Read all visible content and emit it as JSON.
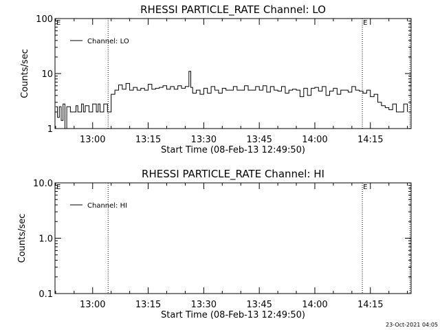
{
  "footer": {
    "timestamp": "23-Oct-2021 04:05"
  },
  "chart_data": [
    {
      "type": "line",
      "title": "RHESSI PARTICLE_RATE Channel: LO",
      "xlabel": "Start Time (08-Feb-13 12:49:50)",
      "ylabel": "Counts/sec",
      "yscale": "log",
      "ylim": [
        1,
        100
      ],
      "yticks": [
        {
          "value": 1,
          "label": "1"
        },
        {
          "value": 10,
          "label": "10"
        },
        {
          "value": 100,
          "label": "100"
        }
      ],
      "xlim": [
        "12:49:50",
        "14:26:00"
      ],
      "xticks": [
        "13:00",
        "13:15",
        "13:30",
        "13:45",
        "14:00",
        "14:15"
      ],
      "grid": false,
      "legend": {
        "position": "top-left",
        "entries": [
          "Channel: LO"
        ]
      },
      "markers": [
        {
          "time": "13:04:10",
          "label": ""
        },
        {
          "time": "14:12:50",
          "label": "E"
        },
        {
          "time": "14:25:40",
          "label": ""
        }
      ],
      "corner_label": "E",
      "series": [
        {
          "name": "Channel: LO",
          "x": [
            "12:50:00",
            "12:50:30",
            "12:51:00",
            "12:51:30",
            "12:52:00",
            "12:52:30",
            "12:53:00",
            "12:54:00",
            "12:55:00",
            "12:55:30",
            "12:56:00",
            "12:57:00",
            "12:57:30",
            "12:58:00",
            "12:59:00",
            "13:00:00",
            "13:01:00",
            "13:01:30",
            "13:02:00",
            "13:03:00",
            "13:04:00",
            "13:05:00",
            "13:06:00",
            "13:07:00",
            "13:08:00",
            "13:09:00",
            "13:10:00",
            "13:11:00",
            "13:12:00",
            "13:13:00",
            "13:14:00",
            "13:15:00",
            "13:16:00",
            "13:17:00",
            "13:18:00",
            "13:19:00",
            "13:20:00",
            "13:21:00",
            "13:22:00",
            "13:23:00",
            "13:24:00",
            "13:25:00",
            "13:26:00",
            "13:26:30",
            "13:27:00",
            "13:28:00",
            "13:29:00",
            "13:30:00",
            "13:31:00",
            "13:32:00",
            "13:33:00",
            "13:34:00",
            "13:35:00",
            "13:36:00",
            "13:37:00",
            "13:38:00",
            "13:39:00",
            "13:40:00",
            "13:41:00",
            "13:42:00",
            "13:43:00",
            "13:44:00",
            "13:45:00",
            "13:46:00",
            "13:47:00",
            "13:48:00",
            "13:49:00",
            "13:50:00",
            "13:51:00",
            "13:52:00",
            "13:53:00",
            "13:54:00",
            "13:55:00",
            "13:56:00",
            "13:57:00",
            "13:58:00",
            "13:59:00",
            "14:00:00",
            "14:01:00",
            "14:02:00",
            "14:03:00",
            "14:04:00",
            "14:05:00",
            "14:06:00",
            "14:07:00",
            "14:08:00",
            "14:09:00",
            "14:10:00",
            "14:11:00",
            "14:12:00",
            "14:13:00",
            "14:14:00",
            "14:15:00",
            "14:16:00",
            "14:17:00",
            "14:18:00",
            "14:19:00",
            "14:20:00",
            "14:21:00",
            "14:22:00",
            "14:23:00",
            "14:24:00",
            "14:25:00"
          ],
          "y": [
            2.5,
            1.6,
            2.5,
            1.4,
            2.8,
            1.0,
            2.5,
            2.0,
            2.0,
            2.6,
            2.0,
            2.8,
            2.0,
            2.6,
            2.0,
            2.8,
            2.0,
            2.8,
            2.0,
            2.8,
            2.0,
            4.2,
            5.0,
            6.2,
            5.2,
            6.6,
            5.0,
            5.6,
            5.0,
            5.4,
            5.0,
            6.4,
            5.2,
            5.4,
            5.6,
            6.0,
            5.2,
            5.8,
            5.2,
            6.0,
            5.4,
            5.8,
            11.0,
            5.6,
            4.4,
            5.0,
            4.2,
            5.4,
            4.4,
            5.8,
            5.0,
            4.4,
            5.4,
            5.0,
            5.0,
            5.8,
            5.0,
            5.0,
            6.0,
            5.0,
            5.0,
            5.8,
            5.0,
            6.0,
            4.6,
            5.8,
            5.0,
            4.8,
            5.8,
            4.4,
            5.0,
            5.2,
            5.0,
            3.8,
            5.4,
            4.0,
            5.4,
            5.6,
            4.8,
            5.8,
            4.0,
            4.8,
            5.4,
            4.2,
            5.0,
            5.0,
            4.6,
            5.8,
            5.0,
            4.8,
            4.4,
            5.0,
            3.8,
            4.2,
            3.0,
            2.6,
            2.4,
            2.2,
            2.8,
            2.0,
            2.0,
            2.8,
            2.0
          ]
        }
      ]
    },
    {
      "type": "line",
      "title": "RHESSI PARTICLE_RATE Channel: HI",
      "xlabel": "Start Time (08-Feb-13 12:49:50)",
      "ylabel": "Counts/sec",
      "yscale": "log",
      "ylim": [
        0.1,
        10
      ],
      "yticks": [
        {
          "value": 0.1,
          "label": "0.1"
        },
        {
          "value": 1,
          "label": "1.0"
        },
        {
          "value": 10,
          "label": "10.0"
        }
      ],
      "xlim": [
        "12:49:50",
        "14:26:00"
      ],
      "xticks": [
        "13:00",
        "13:15",
        "13:30",
        "13:45",
        "14:00",
        "14:15"
      ],
      "grid": false,
      "legend": {
        "position": "top-left",
        "entries": [
          "Channel: HI"
        ]
      },
      "markers": [
        {
          "time": "13:04:10",
          "label": ""
        },
        {
          "time": "14:12:50",
          "label": "E"
        },
        {
          "time": "14:25:40",
          "label": ""
        }
      ],
      "corner_label": "E",
      "series": [
        {
          "name": "Channel: HI",
          "x": [],
          "y": []
        }
      ]
    }
  ]
}
